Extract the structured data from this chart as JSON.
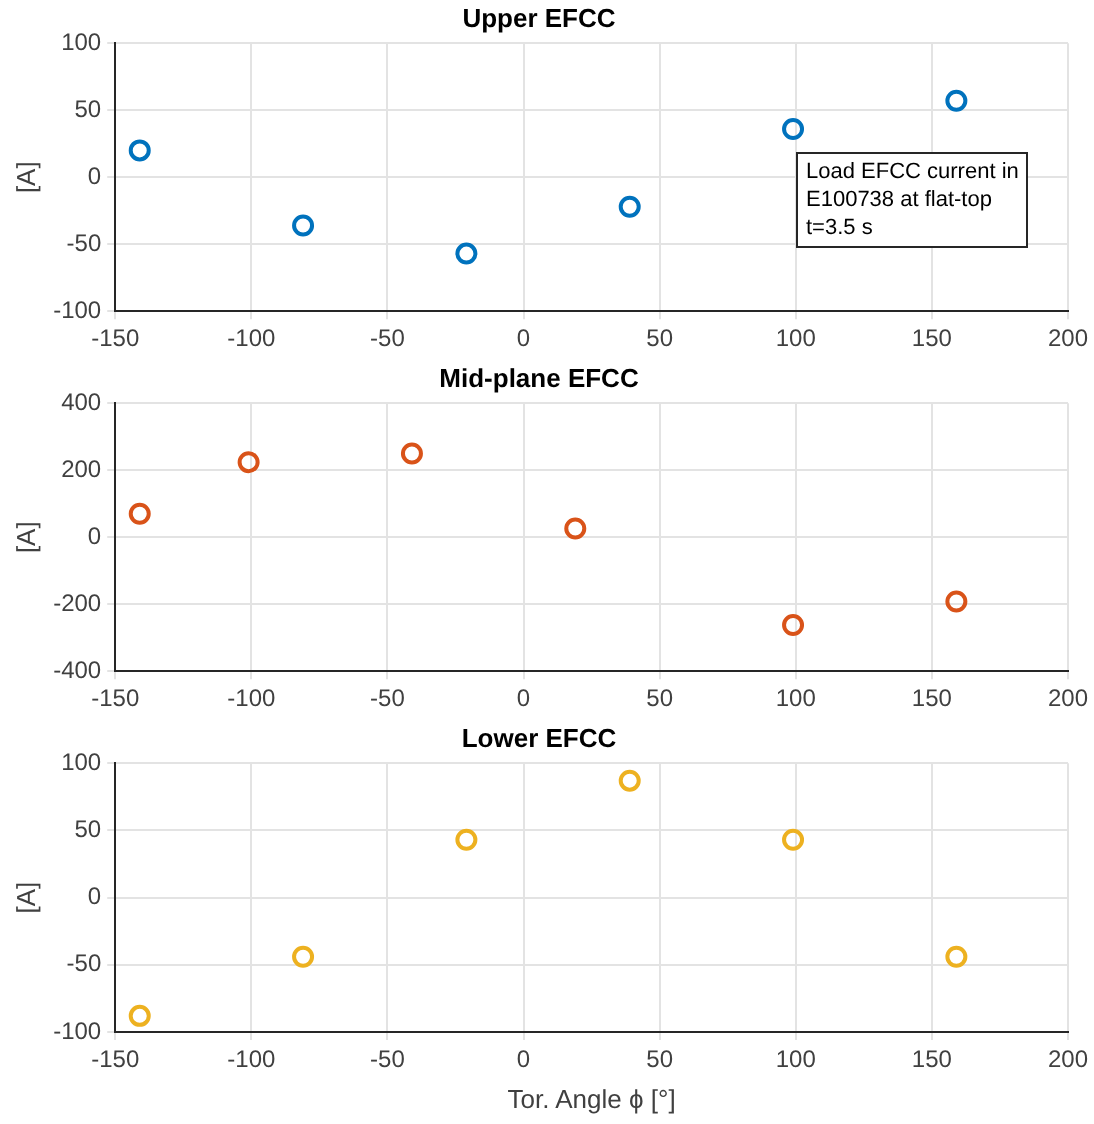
{
  "chart_data": [
    {
      "type": "scatter",
      "title": "Upper EFCC",
      "ylabel": "[A]",
      "x": [
        -141,
        -81,
        -21,
        39,
        99,
        159
      ],
      "series": [
        {
          "color": "#0072bd",
          "values": [
            20,
            -36,
            -57,
            -22,
            36,
            57
          ]
        }
      ],
      "xlim": [
        -150,
        200
      ],
      "xticks": [
        -150,
        -100,
        -50,
        0,
        50,
        100,
        150,
        200
      ],
      "ylim": [
        -100,
        100
      ],
      "yticks": [
        -100,
        -50,
        0,
        50,
        100
      ],
      "grid": true,
      "marker": "circle",
      "annotations": [
        "Load EFCC current in\nE100738 at flat-top\nt=3.5 s"
      ]
    },
    {
      "type": "scatter",
      "title": "Mid-plane EFCC",
      "ylabel": "[A]",
      "x": [
        -141,
        -101,
        -41,
        19,
        99,
        159
      ],
      "series": [
        {
          "color": "#d95319",
          "values": [
            70,
            224,
            250,
            26,
            -262,
            -192
          ]
        }
      ],
      "xlim": [
        -150,
        200
      ],
      "xticks": [
        -150,
        -100,
        -50,
        0,
        50,
        100,
        150,
        200
      ],
      "ylim": [
        -400,
        400
      ],
      "yticks": [
        -400,
        -200,
        0,
        200,
        400
      ],
      "grid": true,
      "marker": "circle"
    },
    {
      "type": "scatter",
      "title": "Lower EFCC",
      "ylabel": "[A]",
      "xlabel": "Tor. Angle ϕ [°]",
      "x": [
        -141,
        -81,
        -21,
        39,
        99,
        159
      ],
      "series": [
        {
          "color": "#edb120",
          "values": [
            -88,
            -44,
            43,
            87,
            43,
            -44
          ]
        }
      ],
      "xlim": [
        -150,
        200
      ],
      "xticks": [
        -150,
        -100,
        -50,
        0,
        50,
        100,
        150,
        200
      ],
      "ylim": [
        -100,
        100
      ],
      "yticks": [
        -100,
        -50,
        0,
        50,
        100
      ],
      "grid": true,
      "marker": "circle"
    }
  ]
}
